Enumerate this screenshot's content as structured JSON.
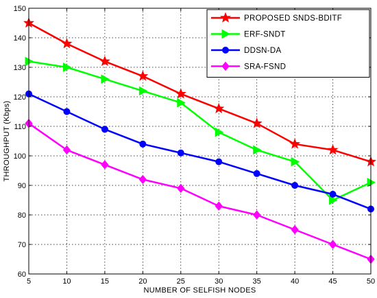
{
  "chart_data": {
    "type": "line",
    "title": "",
    "xlabel": "NUMBER OF SELFISH NODES",
    "ylabel": "THROUGHPUT (Kbps)",
    "xlim": [
      5,
      50
    ],
    "ylim": [
      60,
      150
    ],
    "xticks": [
      5,
      10,
      15,
      20,
      25,
      30,
      35,
      40,
      45,
      50
    ],
    "yticks": [
      60,
      70,
      80,
      90,
      100,
      110,
      120,
      130,
      140,
      150
    ],
    "grid": true,
    "legend_position": "top-right",
    "x": [
      5,
      10,
      15,
      20,
      25,
      30,
      35,
      40,
      45,
      50
    ],
    "series": [
      {
        "name": "PROPOSED SNDS-BDITF",
        "color": "#ff0000",
        "marker": "star",
        "values": [
          145,
          138,
          132,
          127,
          121,
          116,
          111,
          104,
          102,
          98
        ]
      },
      {
        "name": "ERF-SNDT",
        "color": "#00ff00",
        "marker": "triangle-right",
        "values": [
          132,
          130,
          126,
          122,
          118,
          108,
          102,
          98,
          85,
          91
        ]
      },
      {
        "name": "DDSN-DA",
        "color": "#0000ff",
        "marker": "circle",
        "values": [
          121,
          115,
          109,
          104,
          101,
          98,
          94,
          90,
          87,
          82
        ]
      },
      {
        "name": "SRA-FSND",
        "color": "#ff00ff",
        "marker": "diamond",
        "values": [
          111,
          102,
          97,
          92,
          89,
          83,
          80,
          75,
          70,
          65
        ]
      }
    ]
  }
}
